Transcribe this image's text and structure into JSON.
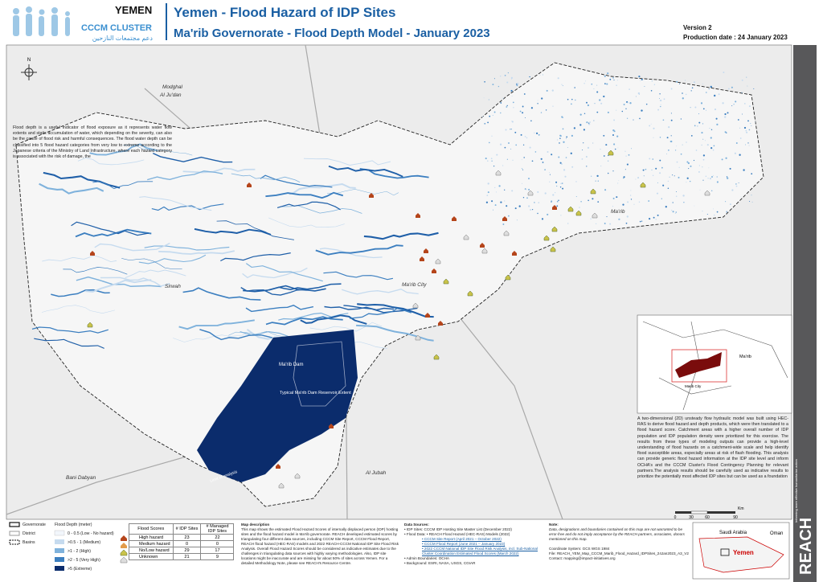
{
  "header": {
    "country": "YEMEN",
    "logo": "CCCM CLUSTER",
    "logo_arabic": "دعم مجتمعات النازحين",
    "title": "Yemen - Flood Hazard of IDP Sites",
    "subtitle": "Ma'rib Governorate - Flood Depth Model - January 2023",
    "version": "Version 2",
    "production_date": "Production date : 24 January 2023"
  },
  "map": {
    "north": "N",
    "labels": {
      "modghal": "Modghal",
      "al_judan": "Al Ju'dan",
      "sirwah": "Sirwah",
      "marib_city": "Ma'rib City",
      "marib": "Ma'rib",
      "bani_dabyan": "Bani Dabyan",
      "al_jubah": "Al Jubah",
      "marib_dam": "Ma'rib Dam",
      "reservoir": "Typical Ma'rib Dam Reservoir Extent",
      "limit": "Limit of analysis"
    },
    "intro_text": "Flood depth is a useful indicator of flood exposure as it represents water flow extents and static accumulation of water, which depending on the severity, can also be the cause of flood risk and harmful consequences. The flood water depth can be classified into 5 flood hazard categories from very low to extreme according to the Japanese criteria of the Ministry of Land Infrastructure, where each hazard category is associated with the risk of damage, the",
    "side_text": "A two-dimensional (2D) unsteady flow hydraulic model was built using HEC-RAS to derive flood hazard and depth products, which were then translated to a flood hazard score. Catchment areas with a higher overall number of IDP population and IDP population density were prioritized for this exercise. The results from these types of modeling outputs can provide a high-level understanding of flood hazards on a catchment-wide scale and help identify flood susceptible areas, especially areas at risk of flash flooding. This analysis can provide generic flood hazard information at the IDP site level and inform OCHA's and the CCCM Cluster's Flood Contingency Planning for relevant partners.The analysis results should be carefully used as indicative results to prioritize the potentially most affected IDP sites but can be used as a foundation",
    "inset": {
      "marib": "Ma'rib",
      "marib_city": "Marib City"
    },
    "locator": {
      "saudi": "Saudi Arabia",
      "oman": "Oman",
      "yemen": "Yemen"
    },
    "scale": {
      "unit": "Km",
      "ticks": [
        "0",
        "30",
        "60",
        "90"
      ]
    }
  },
  "legend": {
    "boundaries": [
      "Governorate",
      "District",
      "Basins"
    ],
    "flood_depth_title": "Flood Depth (meter)",
    "flood_depth": [
      "0 - 0.5 (Low - No hazard)",
      ">0.5 - 1 (Medium)",
      ">1 - 2 (High)",
      ">2 - 5 (Very High)",
      ">5 (Extreme)"
    ]
  },
  "table": {
    "header": [
      "Flood Scores",
      "# IDP Sites",
      "# Managed IDP Sites"
    ],
    "rows": [
      [
        "High hazard",
        "23",
        "22"
      ],
      [
        "Medium hazard",
        "0",
        "0"
      ],
      [
        "No/Low hazard",
        "29",
        "17"
      ],
      [
        "Unknown",
        "21",
        "9"
      ]
    ]
  },
  "description": {
    "title": "Map description",
    "text": "This map shows the estimated Flood Hazard Scores of internally displaced person (IDP) hosting sites and the flood hazard model in Ma'rib governorate. REACH developed estimated scores by triangulating four different data sources, including CCCM Site Report, CCCM Flood Report, REACH flood hazard (HEC-RAS) models and 2022 REACH-CCCM National IDP Site Flood Risk Analysis. Overall Flood Hazard Scores should be considered as indicative estimates due to the challenges in triangulating data sources with highly varying methodologies. Also, IDP site locations might be inaccurate and are missing for about 50% of sites across Yemen. For a detailed Methodology Note, please see REACH's Resource Centre."
  },
  "sources": {
    "title": "Data Sources:",
    "lines": [
      "• IDP Sites: CCCM IDP Hosting Site Master List (December 2022)",
      "• Flood Data: • REACH Flood Hazard (HEC-RAS) Models (2022)",
      "• CCCM Site Report (April 2021 – October 2022)",
      "• CCCM Flood Report (June 2021 – January 2023)",
      "• 2022 CCCM National IDP Site Flood Risk Analysis, incl. Sub-National Cluster Coordination Estimated Flood Scores (March 2022)",
      "• Admin Boundaries: OCHA",
      "• Background: ESRI, NASA, USGS, CGIAR"
    ]
  },
  "note": {
    "title": "Note:",
    "text": "Data, designations and boundaries contained on this map are not warranted to be error-free and do not imply acceptance by the REACH partners, associates, donors mentioned on this map.",
    "coordinate": "Coordinate System: GCS WGS 1984",
    "file": "File: REACH_YEM_Map_CCCM_Marib_Flood_Hazard_IDPSites_24Jan2023_A3_V2",
    "contact": "Contact: mapping@impact-initiatives.org"
  },
  "sidebar": {
    "brand": "REACH",
    "tagline": "Informing more effective humanitarian action"
  }
}
